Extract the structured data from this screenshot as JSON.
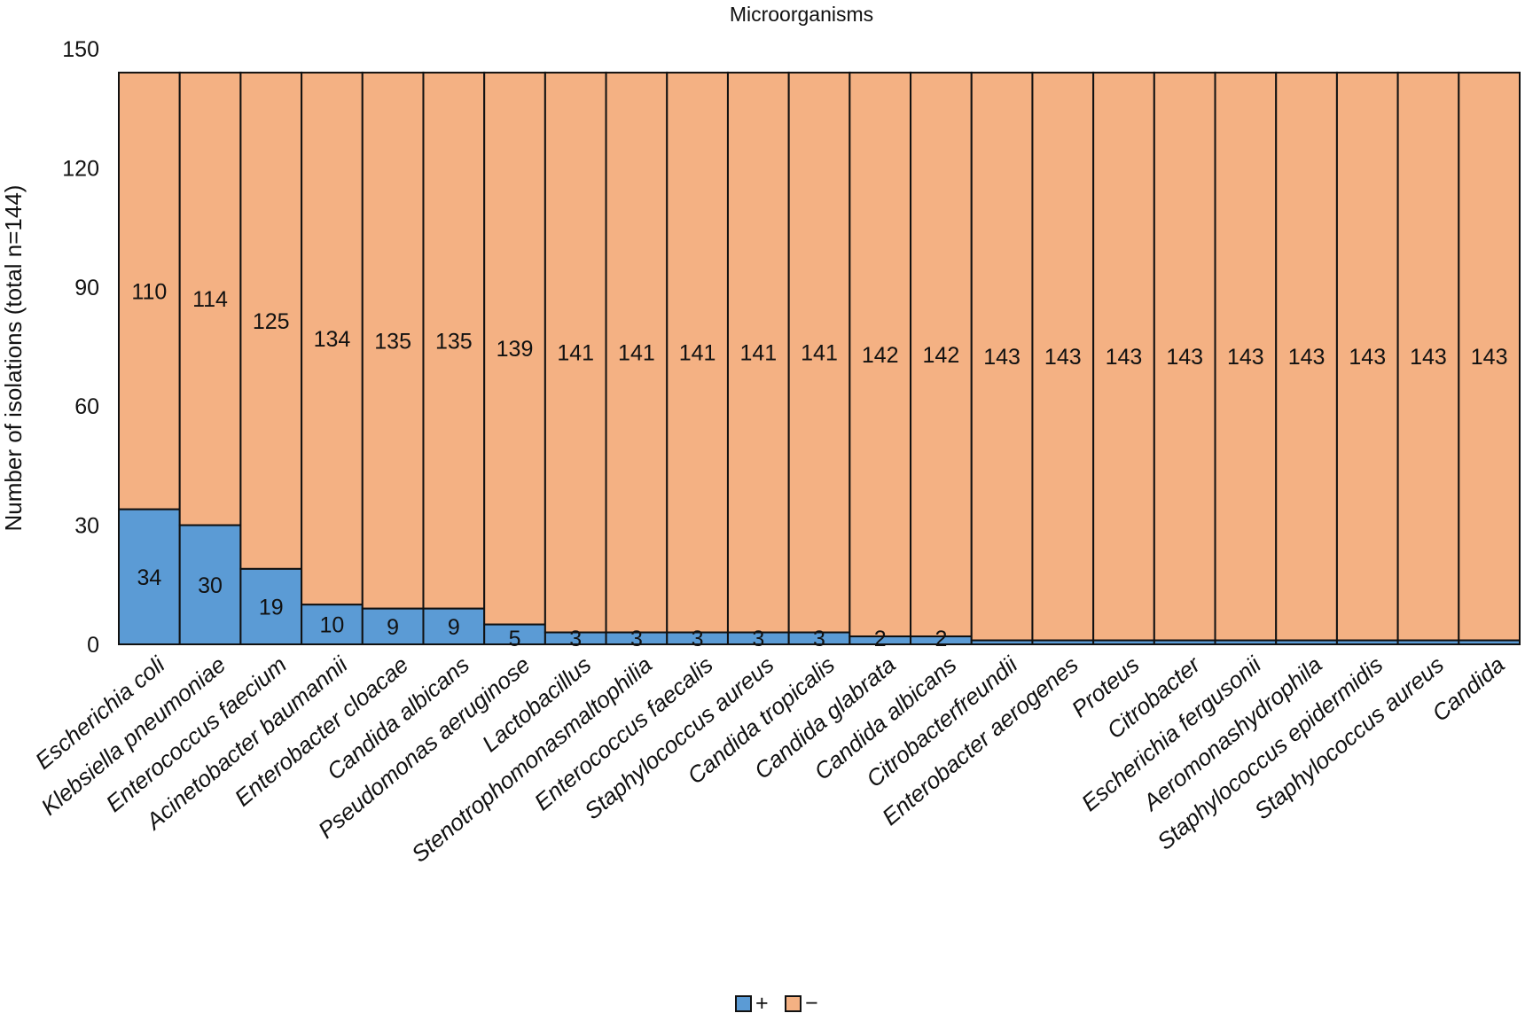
{
  "colors": {
    "positive": "#5b9bd5",
    "negative": "#f4b183",
    "outline": "#111111"
  },
  "chart_data": {
    "type": "bar",
    "stacked": true,
    "title": "Microorganisms",
    "xlabel": "",
    "ylabel": "Number of isolations (total n=144)",
    "ylim": [
      0,
      150
    ],
    "yticks": [
      0,
      30,
      60,
      90,
      120,
      150
    ],
    "grid": false,
    "legend": "bottom",
    "categories": [
      "Escherichia coli",
      "Klebsiella pneumoniae",
      "Enterococcus faecium",
      "Acinetobacter baumannii",
      "Enterobacter cloacae",
      "Candida albicans",
      "Pseudomonas aeruginose",
      "Lactobacillus",
      "Stenotrophomonasmaltophilia",
      "Enterococcus faecalis",
      "Staphylococcus aureus",
      "Candida tropicalis",
      "Candida glabrata",
      "Candida albicans",
      "Citrobacterfreundii",
      "Enterobacter aerogenes",
      "Proteus",
      "Citrobacter",
      "Escherichia fergusonii",
      "Aeromonashydrophila",
      "Staphylococcus epidermidis",
      "Staphylococcus aureus",
      "Candida"
    ],
    "series": [
      {
        "name": "+",
        "color": "#5b9bd5",
        "values": [
          34,
          30,
          19,
          10,
          9,
          9,
          5,
          3,
          3,
          3,
          3,
          3,
          2,
          2,
          1,
          1,
          1,
          1,
          1,
          1,
          1,
          1,
          1
        ],
        "labels": [
          "34",
          "30",
          "19",
          "10",
          "9",
          "9",
          "5",
          "3",
          "3",
          "3",
          "3",
          "3",
          "2",
          "2",
          "",
          "",
          "",
          "",
          "",
          "",
          "",
          "",
          ""
        ]
      },
      {
        "name": "−",
        "color": "#f4b183",
        "values": [
          110,
          114,
          125,
          134,
          135,
          135,
          139,
          141,
          141,
          141,
          141,
          141,
          142,
          142,
          143,
          143,
          143,
          143,
          143,
          143,
          143,
          143,
          143
        ],
        "labels": [
          "110",
          "114",
          "125",
          "134",
          "135",
          "135",
          "139",
          "141",
          "141",
          "141",
          "141",
          "141",
          "142",
          "142",
          "143",
          "143",
          "143",
          "143",
          "143",
          "143",
          "143",
          "143",
          "143"
        ]
      }
    ]
  }
}
